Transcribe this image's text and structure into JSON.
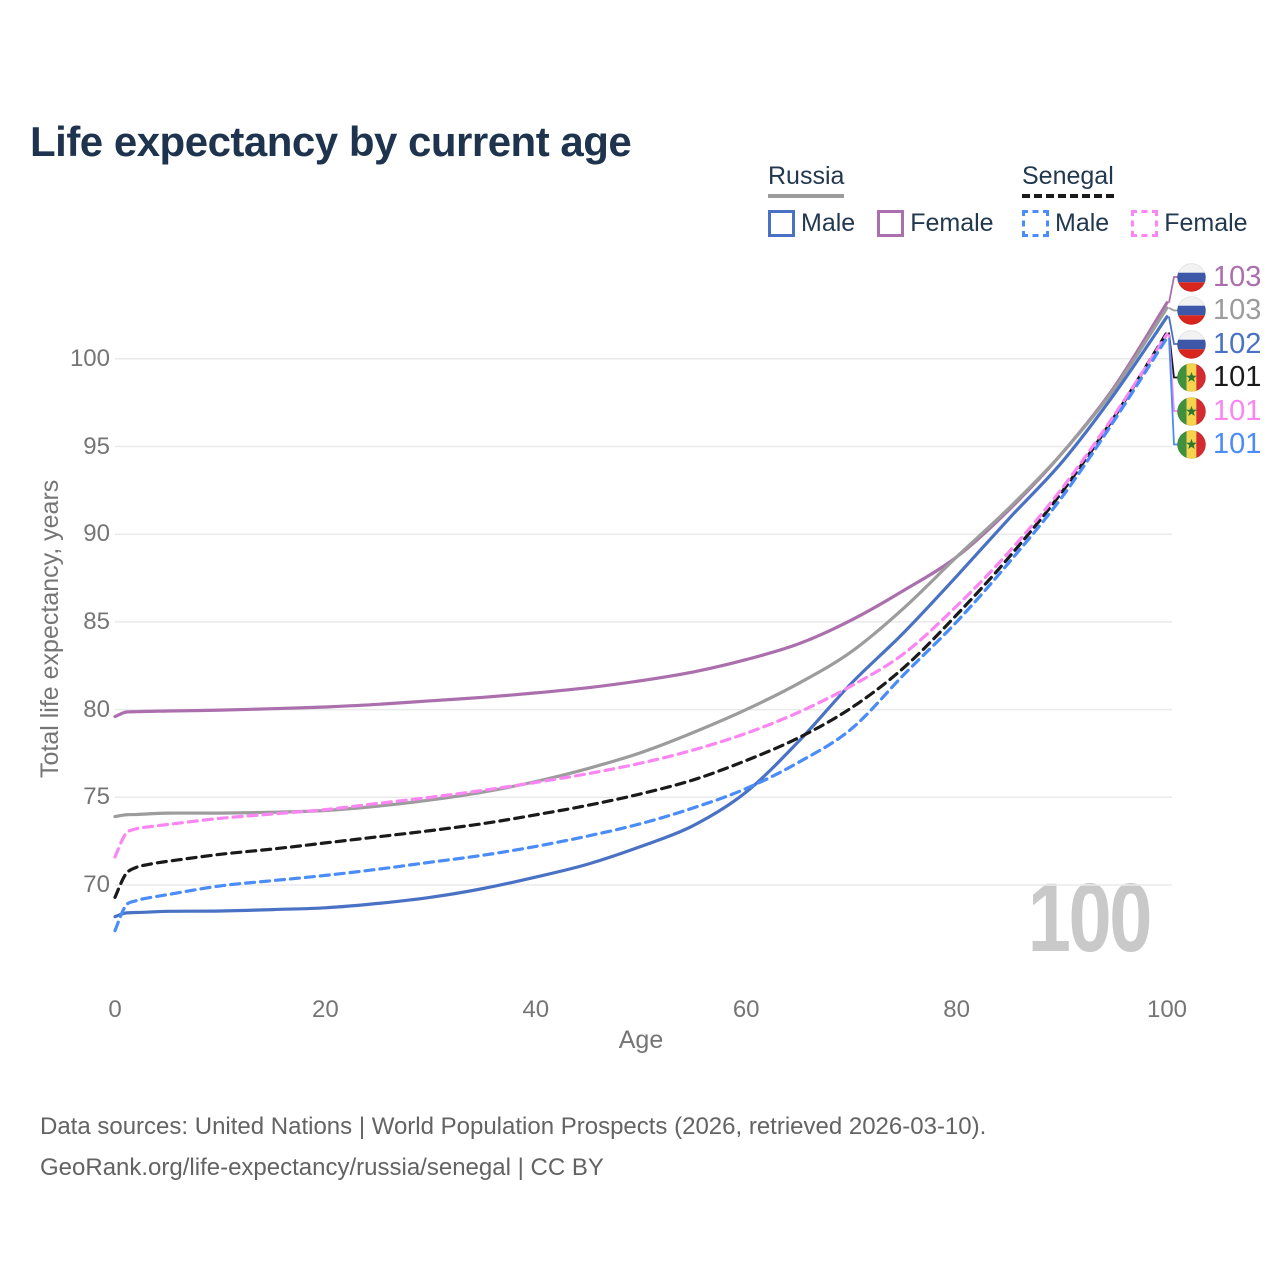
{
  "title": "Life expectancy by current age",
  "legend": {
    "groups": [
      {
        "label": "Russia",
        "line_style": "solid",
        "line_color": "#9c9c9c",
        "items": [
          {
            "label": "Male",
            "color": "#4a72c4",
            "dashed": false
          },
          {
            "label": "Female",
            "color": "#ab6fad",
            "dashed": false
          }
        ]
      },
      {
        "label": "Senegal",
        "line_style": "dashed",
        "line_color": "#1a1a1a",
        "items": [
          {
            "label": "Male",
            "color": "#4a8cf8",
            "dashed": true
          },
          {
            "label": "Female",
            "color": "#fb85f2",
            "dashed": true
          }
        ]
      }
    ]
  },
  "watermark": "100",
  "footer": {
    "line1": "Data sources: United Nations | World Population Prospects (2026, retrieved 2026-03-10).",
    "line2": "GeoRank.org/life-expectancy/russia/senegal | CC BY"
  },
  "colors": {
    "title_text": "#1e334e",
    "tick_text": "#757575",
    "footer_text": "#636363",
    "gridline": "#eaeaea",
    "watermark": "#c9c9c9"
  },
  "chart_data": {
    "type": "line",
    "title": "Life expectancy by current age",
    "xlabel": "Age",
    "ylabel": "Total life expectancy, years",
    "x_ticks": [
      0,
      20,
      40,
      60,
      80,
      100
    ],
    "y_ticks": [
      70,
      75,
      80,
      85,
      90,
      95,
      100
    ],
    "xlim": [
      0,
      100
    ],
    "ylim": [
      67,
      104
    ],
    "grid": "horizontal",
    "legend_position": "top-right",
    "x": [
      0,
      1,
      2,
      3,
      5,
      10,
      15,
      20,
      25,
      30,
      35,
      40,
      45,
      50,
      55,
      60,
      65,
      70,
      75,
      80,
      85,
      90,
      95,
      100
    ],
    "series": [
      {
        "name": "Russia Female",
        "country": "Russia",
        "flag_icon": "russia-flag-icon",
        "color": "#ab6fad",
        "dashed": false,
        "end_label": "103",
        "values": [
          79.6,
          79.85,
          79.88,
          79.9,
          79.92,
          79.97,
          80.05,
          80.15,
          80.3,
          80.5,
          80.7,
          80.95,
          81.25,
          81.65,
          82.15,
          82.85,
          83.75,
          85.1,
          86.8,
          88.7,
          91.4,
          94.6,
          98.4,
          103.2
        ]
      },
      {
        "name": "Russia",
        "country": "Russia",
        "flag_icon": "russia-flag-icon",
        "color": "#9c9c9c",
        "dashed": false,
        "end_label": "103",
        "values": [
          73.9,
          74.0,
          74.02,
          74.05,
          74.1,
          74.1,
          74.15,
          74.25,
          74.5,
          74.85,
          75.3,
          75.9,
          76.65,
          77.55,
          78.7,
          80.0,
          81.5,
          83.3,
          85.8,
          88.7,
          91.5,
          94.6,
          98.3,
          102.9
        ]
      },
      {
        "name": "Russia Male",
        "country": "Russia",
        "flag_icon": "russia-flag-icon",
        "color": "#4a72c4",
        "dashed": false,
        "end_label": "102",
        "values": [
          68.2,
          68.4,
          68.43,
          68.45,
          68.5,
          68.52,
          68.6,
          68.7,
          68.95,
          69.3,
          69.8,
          70.45,
          71.2,
          72.2,
          73.4,
          75.3,
          78.2,
          81.5,
          84.4,
          87.6,
          90.9,
          94.1,
          98.0,
          102.4
        ]
      },
      {
        "name": "Senegal",
        "country": "Senegal",
        "flag_icon": "senegal-flag-icon",
        "color": "#1a1a1a",
        "dashed": true,
        "end_label": "101",
        "values": [
          69.3,
          70.6,
          71.0,
          71.15,
          71.35,
          71.75,
          72.05,
          72.4,
          72.75,
          73.1,
          73.5,
          74.0,
          74.55,
          75.2,
          76.0,
          77.1,
          78.4,
          80.1,
          82.4,
          85.4,
          88.7,
          92.4,
          96.7,
          101.5
        ]
      },
      {
        "name": "Senegal Female",
        "country": "Senegal",
        "flag_icon": "senegal-flag-icon",
        "color": "#fb85f2",
        "dashed": true,
        "end_label": "101",
        "values": [
          71.6,
          72.9,
          73.2,
          73.3,
          73.45,
          73.8,
          74.05,
          74.3,
          74.65,
          75.0,
          75.4,
          75.85,
          76.35,
          76.95,
          77.7,
          78.65,
          79.85,
          81.35,
          83.2,
          85.9,
          89.0,
          92.6,
          96.8,
          101.4
        ]
      },
      {
        "name": "Senegal Male",
        "country": "Senegal",
        "flag_icon": "senegal-flag-icon",
        "color": "#4a8cf8",
        "dashed": true,
        "end_label": "101",
        "values": [
          67.4,
          68.8,
          69.1,
          69.25,
          69.45,
          69.95,
          70.25,
          70.55,
          70.9,
          71.3,
          71.7,
          72.2,
          72.8,
          73.5,
          74.4,
          75.5,
          77.0,
          78.9,
          82.0,
          85.0,
          88.4,
          92.1,
          96.5,
          101.2
        ]
      }
    ]
  }
}
